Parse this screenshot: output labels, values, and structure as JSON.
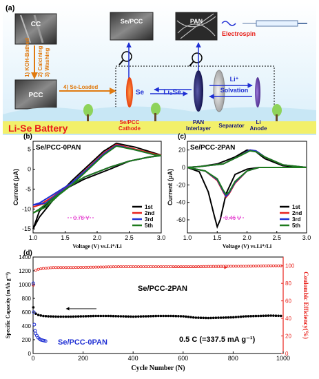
{
  "panel_a": {
    "label": "(a)",
    "cc_label": "CC",
    "pcc_label": "PCC",
    "sepcc_label": "Se/PCC",
    "pan_label": "PAN",
    "electrospin_label": "Electrospin",
    "steps": [
      "1) KOH-Bathed",
      "2) Calcining",
      "3) Washing"
    ],
    "se_loaded": "4) Se-Loaded",
    "se": "Se",
    "li2se": "Li₂Se",
    "li_plus": "Li⁺",
    "solvation": "Solvation",
    "battery_title": "Li-Se Battery",
    "cathode_line1": "Se/PCC",
    "cathode_line2": "Cathode",
    "pan_line1": "PAN",
    "pan_line2": "Interlayer",
    "separator": "Separator",
    "anode_line1": "Li",
    "anode_line2": "Anode"
  },
  "colors": {
    "cycle1": "#000000",
    "cycle2": "#e8221c",
    "cycle3": "#1f2fd4",
    "cycle5": "#1d7a1d",
    "capacity_2pan": "#000000",
    "capacity_0pan": "#1f2fd4",
    "efficiency": "#e8221c",
    "annotation": "#e020c8",
    "battery_text": "#e8221c",
    "cathode": "#f05a1a",
    "interlayer": "#1a1a7a",
    "step_text": "#e07a10",
    "battery_band": "#f2f06a"
  },
  "chart_data": [
    {
      "id": "b",
      "type": "line",
      "panel_label": "(b)",
      "title": "Se/PCC-0PAN",
      "xlabel": "Voltage (V) vs.Li⁺/Li",
      "ylabel": "Current (μA)",
      "xlim": [
        1.0,
        3.0
      ],
      "ylim": [
        -16,
        7
      ],
      "xticks": [
        "1.0",
        "1.5",
        "2.0",
        "2.5",
        "3.0"
      ],
      "yticks": [
        "5",
        "0",
        "-5",
        "-10",
        "-15"
      ],
      "annotation": "0.78 V",
      "legend": [
        "1st",
        "2nd",
        "3rd",
        "5th"
      ],
      "series": [
        {
          "name": "1st",
          "x": [
            1.0,
            1.1,
            1.3,
            1.6,
            1.9,
            2.1,
            2.3,
            2.6,
            2.9,
            3.0,
            2.8,
            2.5,
            2.2,
            1.8,
            1.5,
            1.3,
            1.1,
            1.0
          ],
          "y": [
            -15,
            -12,
            -8,
            -3,
            1.5,
            4.5,
            6.5,
            5.5,
            4,
            3.5,
            3,
            2,
            0,
            -2.5,
            -5,
            -7.5,
            -10.5,
            -15
          ]
        },
        {
          "name": "2nd",
          "x": [
            1.0,
            1.1,
            1.3,
            1.6,
            1.9,
            2.1,
            2.3,
            2.6,
            2.9,
            3.0,
            2.8,
            2.5,
            2.2,
            1.8,
            1.6,
            1.4,
            1.2,
            1.0
          ],
          "y": [
            -9.5,
            -9,
            -7,
            -3.5,
            1,
            4,
            6.2,
            5,
            3.8,
            3.5,
            3,
            2,
            0.5,
            -2,
            -4,
            -6,
            -8.5,
            -9.5
          ]
        },
        {
          "name": "3rd",
          "x": [
            1.0,
            1.1,
            1.3,
            1.6,
            1.9,
            2.1,
            2.3,
            2.6,
            2.9,
            3.0,
            2.8,
            2.5,
            2.2,
            1.8,
            1.6,
            1.4,
            1.2,
            1.0
          ],
          "y": [
            -9,
            -8.5,
            -6.5,
            -3.5,
            0.8,
            3.8,
            6,
            4.8,
            3.6,
            3.4,
            3,
            2,
            0.5,
            -2,
            -4,
            -6,
            -8.5,
            -9
          ]
        },
        {
          "name": "5th",
          "x": [
            1.0,
            1.1,
            1.3,
            1.6,
            1.9,
            2.1,
            2.3,
            2.6,
            2.9,
            3.0,
            2.8,
            2.5,
            2.2,
            1.8,
            1.6,
            1.4,
            1.2,
            1.0
          ],
          "y": [
            -11,
            -10,
            -7.5,
            -4,
            0.5,
            3.5,
            5.8,
            4.8,
            3.6,
            3.4,
            3,
            2,
            0.5,
            -2,
            -4,
            -6.5,
            -9.5,
            -11
          ]
        }
      ]
    },
    {
      "id": "c",
      "type": "line",
      "panel_label": "(c)",
      "title": "Se/PCC-2PAN",
      "xlabel": "Voltage (V) vs.Li⁺/Li",
      "ylabel": "Current (μA)",
      "xlim": [
        1.0,
        3.0
      ],
      "ylim": [
        -75,
        30
      ],
      "xticks": [
        "1.0",
        "1.5",
        "2.0",
        "2.5",
        "3.0"
      ],
      "yticks": [
        "20",
        "0",
        "-20",
        "-40",
        "-60"
      ],
      "annotation": "0.46 V",
      "legend": [
        "1st",
        "2nd",
        "3rd",
        "5th"
      ],
      "series": [
        {
          "name": "1st",
          "x": [
            1.0,
            1.2,
            1.35,
            1.45,
            1.5,
            1.55,
            1.65,
            1.8,
            2.0,
            2.2,
            2.5,
            3.0,
            2.6,
            2.3,
            2.15,
            2.0,
            1.8,
            1.5,
            1.2,
            1.0
          ],
          "y": [
            0,
            -5,
            -28,
            -55,
            -68,
            -60,
            -30,
            -8,
            -2,
            0,
            0,
            0,
            2,
            10,
            18,
            20,
            12,
            4,
            1,
            0
          ]
        },
        {
          "name": "2nd",
          "x": [
            1.0,
            1.3,
            1.5,
            1.6,
            1.65,
            1.7,
            1.8,
            2.0,
            2.2,
            2.5,
            3.0,
            2.6,
            2.3,
            2.15,
            2.05,
            1.9,
            1.6,
            1.2,
            1.0
          ],
          "y": [
            0,
            -4,
            -15,
            -28,
            -34,
            -30,
            -18,
            -4,
            0,
            0,
            0,
            3,
            12,
            19,
            20,
            14,
            4,
            1,
            0
          ]
        },
        {
          "name": "3rd",
          "x": [
            1.0,
            1.3,
            1.5,
            1.6,
            1.65,
            1.7,
            1.8,
            2.0,
            2.2,
            2.5,
            3.0,
            2.6,
            2.3,
            2.15,
            2.05,
            1.9,
            1.6,
            1.2,
            1.0
          ],
          "y": [
            0,
            -4,
            -14,
            -27,
            -33,
            -29,
            -17,
            -4,
            0,
            0,
            0,
            3,
            12,
            19,
            20,
            14,
            4,
            1,
            0
          ]
        },
        {
          "name": "5th",
          "x": [
            1.0,
            1.3,
            1.5,
            1.6,
            1.65,
            1.7,
            1.8,
            2.0,
            2.2,
            2.5,
            3.0,
            2.6,
            2.3,
            2.15,
            2.05,
            1.9,
            1.6,
            1.2,
            1.0
          ],
          "y": [
            0,
            -4,
            -13,
            -26,
            -31,
            -28,
            -16,
            -4,
            0,
            0,
            0,
            3,
            12,
            18,
            19,
            14,
            4,
            1,
            0
          ]
        }
      ]
    },
    {
      "id": "d",
      "type": "scatter",
      "panel_label": "(d)",
      "xlabel": "Cycle Number (N)",
      "ylabel": "Specific Capacity (mAh g⁻¹)",
      "ylabel_right": "Coulombic Efficiency(%)",
      "xlim": [
        0,
        1000
      ],
      "ylim": [
        0,
        1400
      ],
      "ylim_right": [
        0,
        110
      ],
      "xticks": [
        "0",
        "200",
        "400",
        "600",
        "800",
        "1000"
      ],
      "yticks": [
        "0",
        "200",
        "400",
        "600",
        "800",
        "1000",
        "1200",
        "1400"
      ],
      "yticks_right": [
        "0",
        "20",
        "40",
        "60",
        "80",
        "100"
      ],
      "label_2pan": "Se/PCC-2PAN",
      "label_0pan": "Se/PCC-0PAN",
      "rate_note": "0.5 C (=337.5 mA g⁻¹)",
      "series": [
        {
          "name": "Se/PCC-2PAN",
          "x": [
            1,
            5,
            10,
            20,
            40,
            60,
            100,
            150,
            200,
            250,
            300,
            350,
            400,
            450,
            500,
            550,
            600,
            650,
            700,
            750,
            800,
            850,
            900,
            950,
            1000
          ],
          "y": [
            670,
            610,
            580,
            560,
            545,
            540,
            535,
            535,
            540,
            545,
            545,
            540,
            535,
            540,
            545,
            545,
            540,
            520,
            515,
            520,
            525,
            540,
            545,
            550,
            545
          ]
        },
        {
          "name": "Se/PCC-0PAN",
          "x": [
            1,
            3,
            5,
            8,
            10,
            15,
            20,
            25,
            30,
            35,
            40,
            45,
            50
          ],
          "y": [
            1020,
            600,
            420,
            330,
            290,
            260,
            230,
            215,
            200,
            195,
            190,
            185,
            180
          ]
        },
        {
          "name": "Coulombic Efficiency",
          "x": [
            1,
            5,
            10,
            20,
            40,
            80,
            150,
            250,
            350,
            450,
            550,
            650,
            750,
            850,
            950,
            1000
          ],
          "y": [
            78,
            92,
            95,
            96,
            97,
            98,
            98,
            98.5,
            99,
            99,
            99,
            99,
            99.5,
            99.5,
            100,
            100
          ]
        }
      ]
    }
  ]
}
